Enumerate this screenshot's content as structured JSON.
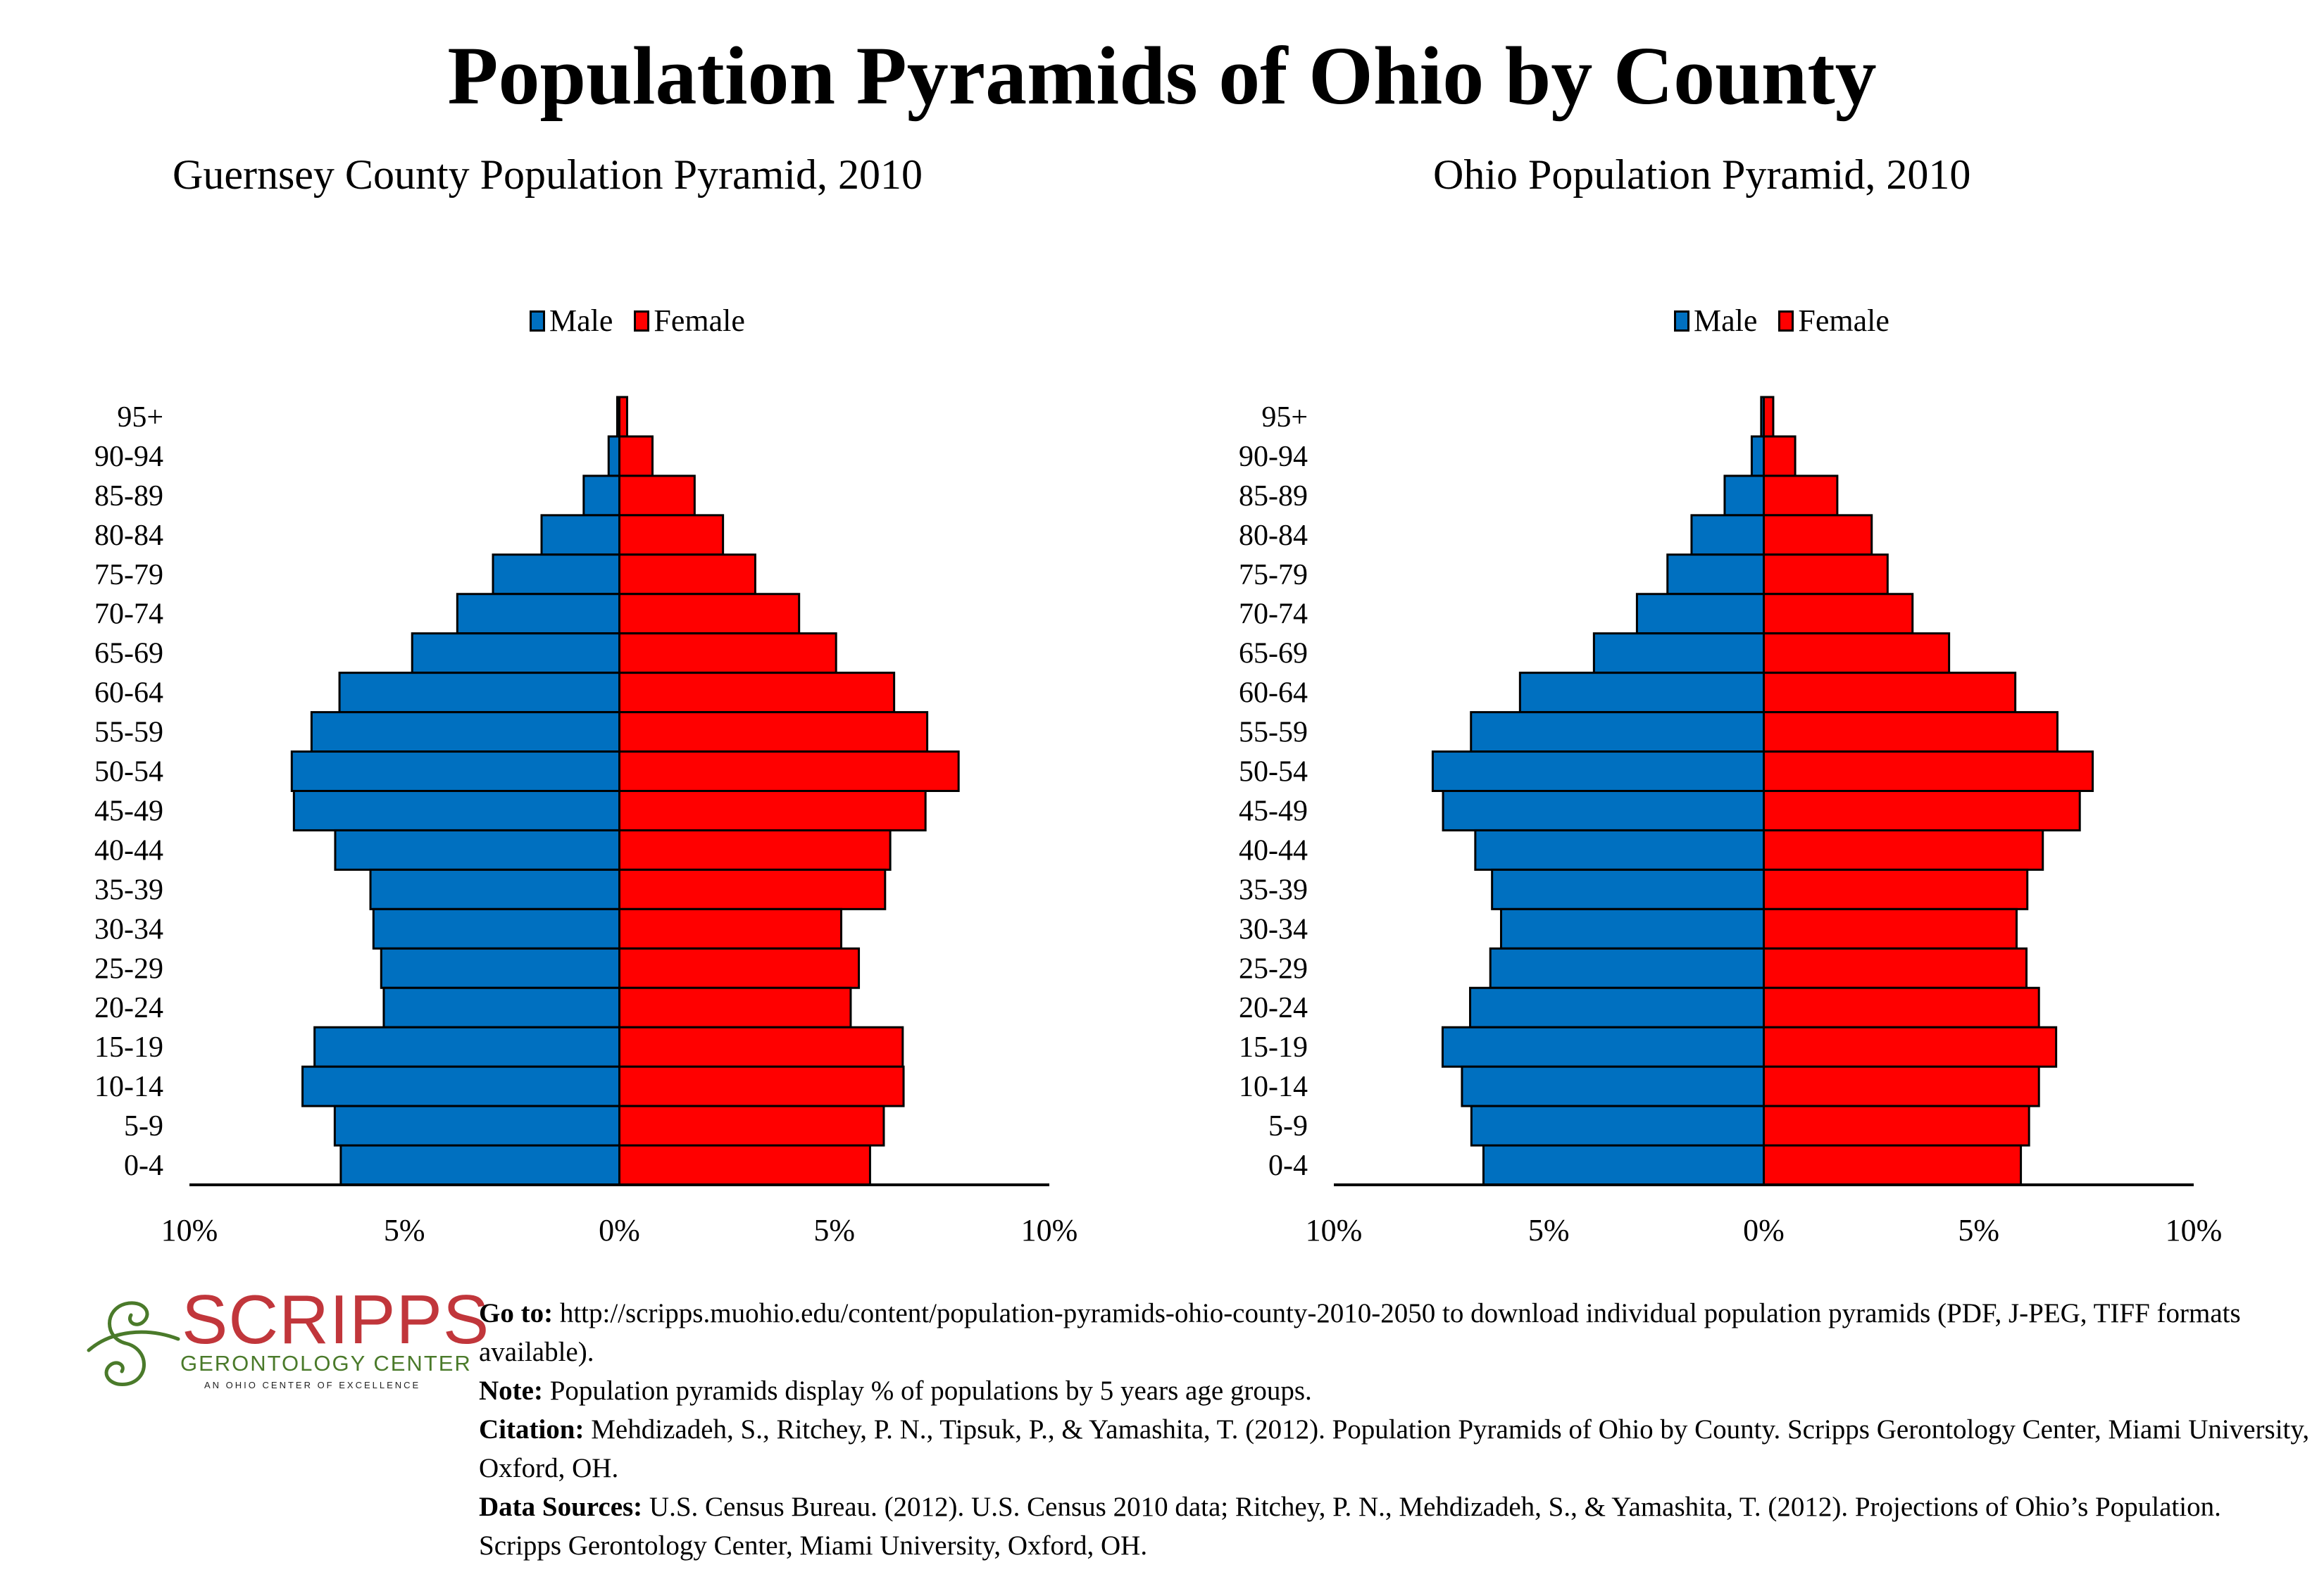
{
  "title": "Population Pyramids of Ohio by County",
  "colors": {
    "male": "#0070c0",
    "female": "#ff0000",
    "outline": "#000000",
    "logo_red": "#c1363b",
    "logo_green": "#4a7a2a"
  },
  "legend": {
    "male": "Male",
    "female": "Female"
  },
  "chart_data": [
    {
      "type": "bar",
      "orientation": "horizontal-pyramid",
      "title": "Guernsey County Population Pyramid, 2010",
      "categories": [
        "95+",
        "90-94",
        "85-89",
        "80-84",
        "75-79",
        "70-74",
        "65-69",
        "60-64",
        "55-59",
        "50-54",
        "45-49",
        "40-44",
        "35-39",
        "30-34",
        "25-29",
        "20-24",
        "15-19",
        "10-14",
        "5-9",
        "0-4"
      ],
      "series": [
        {
          "name": "Male",
          "values": [
            0.05,
            0.25,
            0.83,
            1.81,
            2.94,
            3.77,
            4.82,
            6.51,
            7.16,
            7.62,
            7.57,
            6.61,
            5.79,
            5.72,
            5.54,
            5.48,
            7.09,
            7.37,
            6.62,
            6.48
          ]
        },
        {
          "name": "Female",
          "values": [
            0.18,
            0.77,
            1.75,
            2.41,
            3.16,
            4.18,
            5.04,
            6.39,
            7.16,
            7.89,
            7.12,
            6.3,
            6.18,
            5.16,
            5.57,
            5.38,
            6.59,
            6.61,
            6.15,
            5.83
          ]
        }
      ],
      "xlim": [
        -10,
        10
      ],
      "xticks": [
        "10%",
        "5%",
        "0%",
        "5%",
        "10%"
      ],
      "xtick_values": [
        -10,
        -5,
        0,
        5,
        10
      ],
      "unit": "% of population",
      "legend_position": "top-center",
      "grid": false
    },
    {
      "type": "bar",
      "orientation": "horizontal-pyramid",
      "title": "Ohio Population Pyramid, 2010",
      "categories": [
        "95+",
        "90-94",
        "85-89",
        "80-84",
        "75-79",
        "70-74",
        "65-69",
        "60-64",
        "55-59",
        "50-54",
        "45-49",
        "40-44",
        "35-39",
        "30-34",
        "25-29",
        "20-24",
        "15-19",
        "10-14",
        "5-9",
        "0-4"
      ],
      "series": [
        {
          "name": "Male",
          "values": [
            0.06,
            0.28,
            0.91,
            1.68,
            2.24,
            2.95,
            3.95,
            5.67,
            6.81,
            7.7,
            7.46,
            6.71,
            6.32,
            6.11,
            6.36,
            6.83,
            7.47,
            7.02,
            6.8,
            6.52
          ]
        },
        {
          "name": "Female",
          "values": [
            0.22,
            0.73,
            1.71,
            2.51,
            2.88,
            3.46,
            4.31,
            5.85,
            6.83,
            7.65,
            7.35,
            6.49,
            6.13,
            5.88,
            6.11,
            6.4,
            6.8,
            6.4,
            6.17,
            5.98
          ]
        }
      ],
      "xlim": [
        -10,
        10
      ],
      "xticks": [
        "10%",
        "5%",
        "0%",
        "5%",
        "10%"
      ],
      "xtick_values": [
        -10,
        -5,
        0,
        5,
        10
      ],
      "unit": "% of population",
      "legend_position": "top-center",
      "grid": false
    }
  ],
  "logo": {
    "name": "SCRIPPS",
    "subtitle": "GERONTOLOGY CENTER",
    "tagline": "AN OHIO CENTER OF EXCELLENCE"
  },
  "footer": {
    "goto_label": "Go to:",
    "goto_text": " http://scripps.muohio.edu/content/population-pyramids-ohio-county-2010-2050 to download individual population pyramids (PDF, J-PEG, TIFF formats available).",
    "note_label": "Note:",
    "note_text": " Population pyramids display % of populations by 5 years age groups.",
    "citation_label": "Citation:",
    "citation_text": " Mehdizadeh, S., Ritchey, P. N., Tipsuk, P., & Yamashita, T. (2012). Population Pyramids of Ohio by County. Scripps Gerontology Center, Miami University, Oxford, OH.",
    "sources_label": "Data Sources:",
    "sources_text": " U.S. Census Bureau. (2012). U.S. Census 2010 data; Ritchey, P. N., Mehdizadeh, S., & Yamashita, T. (2012). Projections of Ohio’s Population. Scripps Gerontology Center, Miami University, Oxford, OH."
  }
}
